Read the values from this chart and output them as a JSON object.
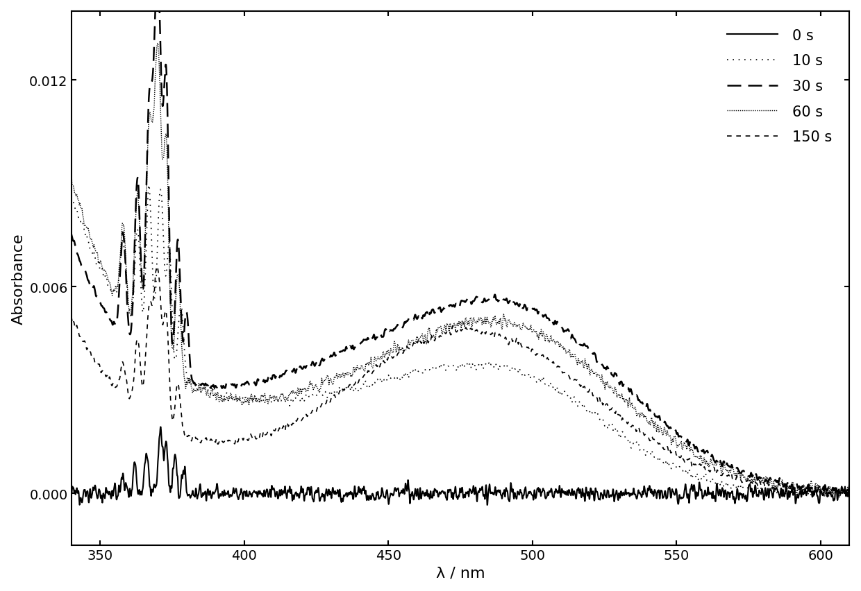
{
  "xlim": [
    340,
    610
  ],
  "ylim": [
    -0.0015,
    0.014
  ],
  "xlabel": "λ / nm",
  "ylabel": "Absorbance",
  "xticks": [
    350,
    400,
    450,
    500,
    550,
    600
  ],
  "yticks": [
    0.0,
    0.006,
    0.012
  ],
  "ytick_labels": [
    "0.000",
    "0.006",
    "0.012"
  ],
  "legend_labels": [
    "0 s",
    "10 s",
    "30 s",
    "60 s",
    "150 s"
  ],
  "line_widths": [
    1.5,
    1.2,
    1.8,
    1.0,
    1.2
  ],
  "color": "#000000",
  "background": "#ffffff",
  "label_fontsize": 16,
  "tick_fontsize": 14,
  "legend_fontsize": 15
}
